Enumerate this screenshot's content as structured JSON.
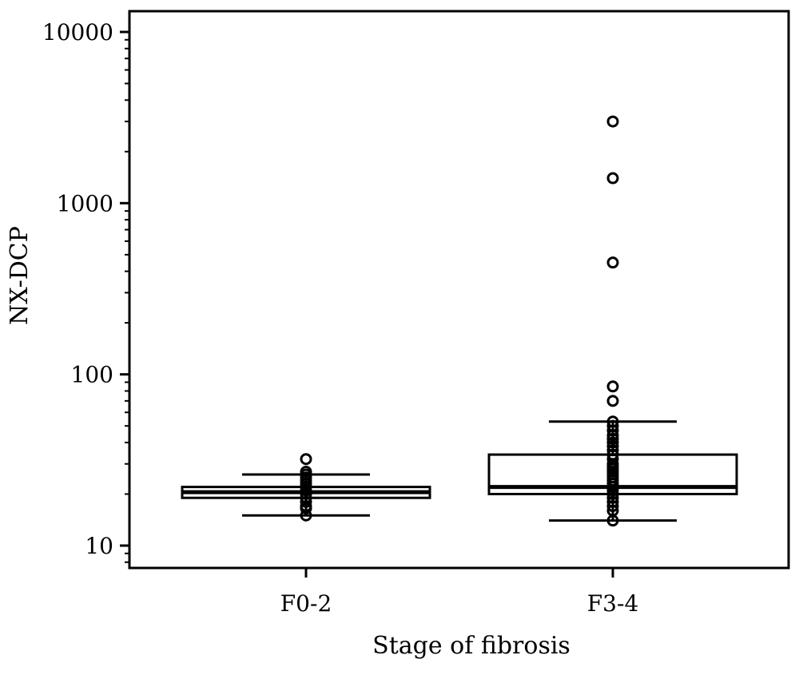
{
  "chart_data": {
    "type": "boxplot",
    "xlabel": "Stage of fibrosis",
    "ylabel": "NX-DCP",
    "yscale": "log",
    "ylim": [
      7.7,
      16000
    ],
    "yticks": [
      10,
      100,
      1000,
      10000
    ],
    "ytick_labels": [
      "10",
      "100",
      "1000",
      "10000"
    ],
    "grid": false,
    "categories": [
      "F0-2",
      "F3-4"
    ],
    "boxes": [
      {
        "category": "F0-2",
        "whisker_low": 15,
        "q1": 19,
        "median": 20.5,
        "q3": 22,
        "whisker_high": 26,
        "outliers": [
          15,
          16.5,
          17,
          18,
          19,
          20,
          21,
          22,
          23,
          24,
          25,
          26,
          27,
          32
        ]
      },
      {
        "category": "F3-4",
        "whisker_low": 14,
        "q1": 20,
        "median": 22,
        "q3": 34,
        "whisker_high": 53,
        "outliers": [
          14,
          16,
          17,
          18,
          19,
          20,
          21,
          22,
          23,
          24,
          25,
          26,
          27,
          28,
          29,
          30,
          32,
          34,
          36,
          38,
          40,
          42,
          44,
          47,
          50,
          53,
          70,
          85,
          450,
          1400,
          3000
        ]
      }
    ]
  }
}
